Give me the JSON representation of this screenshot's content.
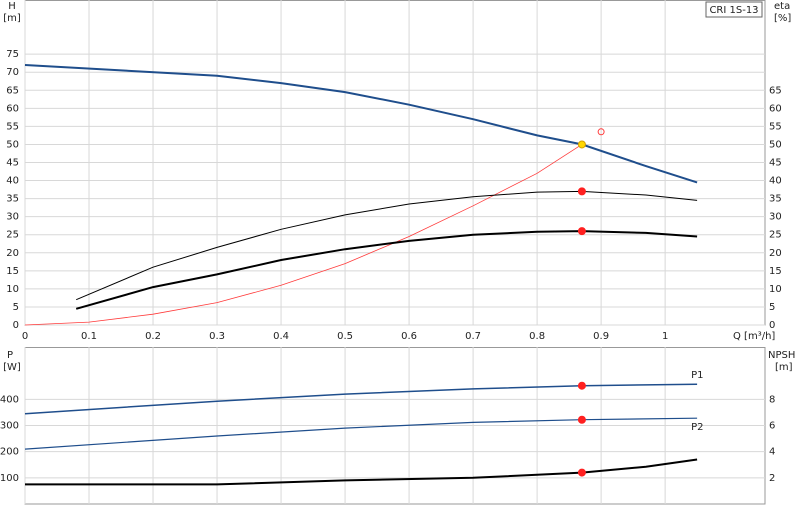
{
  "chart_data": [
    {
      "type": "line",
      "label_box": "CRI 1S-13",
      "y_label": "H",
      "y_unit": "[m]",
      "y2_label": "eta",
      "y2_unit": "[%]",
      "x_label": "Q [m³/h]",
      "xlim": [
        0,
        1.156
      ],
      "xticks": [
        0,
        0.1,
        0.2,
        0.3,
        0.4,
        0.5,
        0.6,
        0.7,
        0.8,
        0.9,
        1.0
      ],
      "ylim": [
        0,
        90
      ],
      "yticks": [
        0,
        5,
        10,
        15,
        20,
        25,
        30,
        35,
        40,
        45,
        50,
        55,
        60,
        65,
        70,
        75
      ],
      "y2lim": [
        0,
        90
      ],
      "y2ticks": [
        0,
        5,
        10,
        15,
        20,
        25,
        30,
        35,
        40,
        45,
        50,
        55,
        60,
        65
      ],
      "grid": true,
      "series": [
        {
          "color": "#1f4e8c",
          "width": 2,
          "x": [
            0,
            0.3,
            0.4,
            0.5,
            0.6,
            0.7,
            0.8,
            0.87,
            0.97,
            1.05
          ],
          "values": [
            72,
            69,
            67,
            64.5,
            61,
            57,
            52.5,
            50,
            44,
            39.5
          ]
        },
        {
          "color": "#ff3b3b",
          "width": 0.8,
          "axis": "y2",
          "x": [
            0,
            0.1,
            0.2,
            0.3,
            0.4,
            0.5,
            0.6,
            0.7,
            0.8,
            0.87
          ],
          "values": [
            0,
            0.8,
            3,
            6.2,
            11,
            17,
            24.5,
            33,
            42,
            50
          ]
        },
        {
          "color": "#000000",
          "width": 1,
          "x": [
            0.08,
            0.2,
            0.3,
            0.4,
            0.5,
            0.6,
            0.7,
            0.8,
            0.87,
            0.97,
            1.05
          ],
          "values": [
            7,
            16,
            21.5,
            26.5,
            30.5,
            33.5,
            35.5,
            36.8,
            37,
            36,
            34.5
          ]
        },
        {
          "color": "#000000",
          "width": 2,
          "x": [
            0.08,
            0.2,
            0.3,
            0.4,
            0.5,
            0.6,
            0.7,
            0.8,
            0.87,
            0.97,
            1.05
          ],
          "values": [
            4.5,
            10.5,
            14,
            18,
            21,
            23.3,
            25,
            25.8,
            26,
            25.5,
            24.5
          ]
        }
      ],
      "points": [
        {
          "x": 0.87,
          "value": 50,
          "color": "#ffd700"
        },
        {
          "x": 0.87,
          "value": 37,
          "color": "#ff2020"
        },
        {
          "x": 0.87,
          "value": 26,
          "color": "#ff2020"
        },
        {
          "x": 0.9,
          "value": 53.5,
          "color": "none"
        }
      ]
    },
    {
      "type": "line",
      "y_label": "P",
      "y_unit": "[W]",
      "y2_label": "NPSH",
      "y2_unit": "[m]",
      "xlim": [
        0,
        1.156
      ],
      "xticks": [
        0,
        0.1,
        0.2,
        0.3,
        0.4,
        0.5,
        0.6,
        0.7,
        0.8,
        0.9,
        1.0
      ],
      "ylim": [
        0,
        600
      ],
      "yticks": [
        100,
        200,
        300,
        400
      ],
      "y2lim": [
        0,
        12
      ],
      "y2ticks": [
        2,
        4,
        6,
        8
      ],
      "grid": true,
      "series": [
        {
          "name": "P1",
          "color": "#1f4e8c",
          "width": 1.5,
          "x": [
            0,
            0.3,
            0.5,
            0.7,
            0.87,
            1.05
          ],
          "values": [
            345,
            393,
            420,
            440,
            452,
            458
          ]
        },
        {
          "name": "P2",
          "color": "#1f4e8c",
          "width": 1.2,
          "x": [
            0,
            0.3,
            0.5,
            0.7,
            0.87,
            1.05
          ],
          "values": [
            210,
            260,
            290,
            312,
            322,
            328
          ]
        },
        {
          "color": "#000000",
          "width": 2,
          "axis": "y2",
          "x": [
            0,
            0.3,
            0.5,
            0.7,
            0.87,
            0.97,
            1.05
          ],
          "values": [
            1.5,
            1.5,
            1.8,
            2.0,
            2.4,
            2.85,
            3.4
          ]
        }
      ],
      "points": [
        {
          "x": 0.87,
          "value": 452,
          "color": "#ff2020"
        },
        {
          "x": 0.87,
          "value": 322,
          "color": "#ff2020"
        },
        {
          "x": 0.87,
          "value": 2.4,
          "color": "#ff2020",
          "axis": "y2"
        }
      ]
    }
  ]
}
